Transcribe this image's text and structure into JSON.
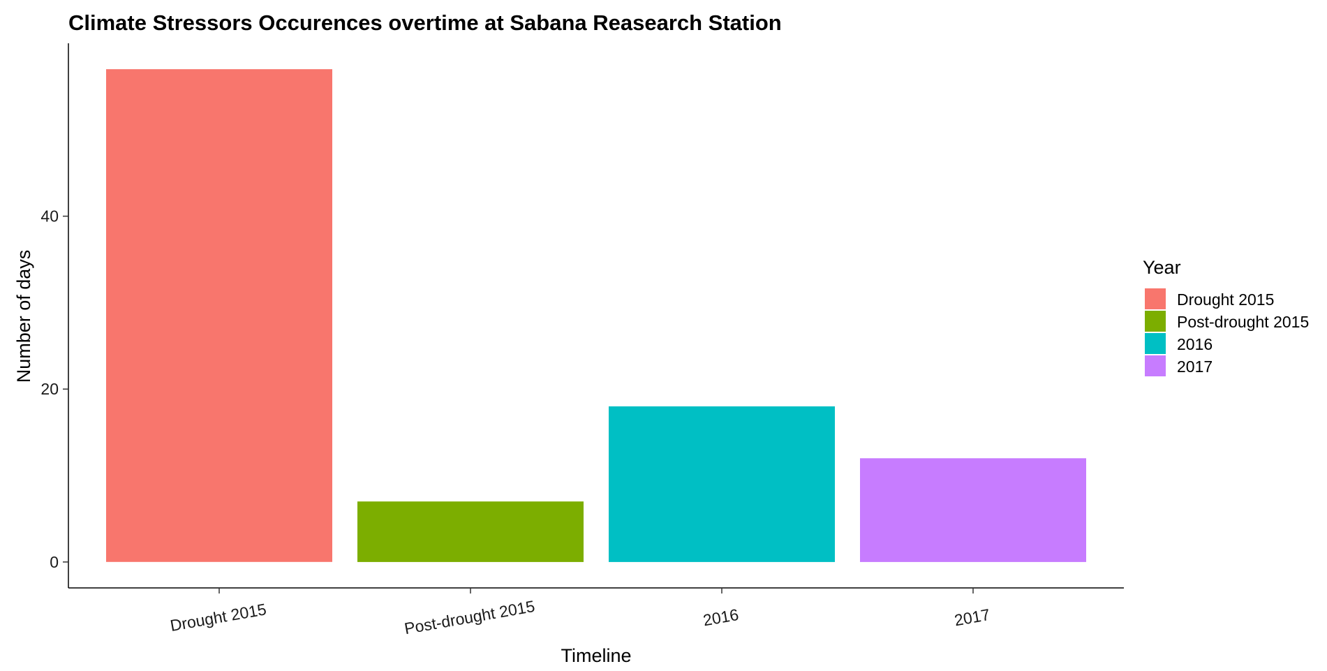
{
  "chart_data": {
    "type": "bar",
    "title": "Climate Stressors Occurences overtime at Sabana Reasearch Station",
    "xlabel": "Timeline",
    "ylabel": "Number of days",
    "categories": [
      "Drought 2015",
      "Post-drought 2015",
      "2016",
      "2017"
    ],
    "values": [
      57,
      7,
      18,
      12
    ],
    "colors": [
      "#F8766D",
      "#7CAE00",
      "#00BFC4",
      "#C77CFF"
    ],
    "ylim": [
      -3,
      60
    ],
    "yticks": [
      0,
      20,
      40
    ],
    "grid": false,
    "legend": {
      "title": "Year",
      "position": "right",
      "entries": [
        "Drought 2015",
        "Post-drought 2015",
        "2016",
        "2017"
      ]
    }
  }
}
